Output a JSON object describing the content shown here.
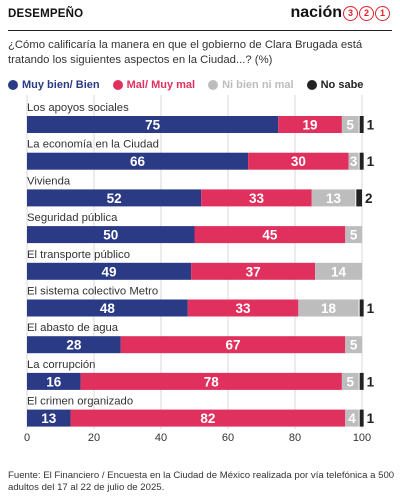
{
  "header": {
    "section": "DESEMPEÑO",
    "logo_word": "nación",
    "logo_digits": [
      "3",
      "2",
      "1"
    ]
  },
  "question": "¿Cómo calificaría la manera en que el gobierno de Clara Brugada está tratando los siguientes aspectos en la Ciudad...? (%)",
  "colors": {
    "Muy bien/ Bien": "#2b3a85",
    "Mal/ Muy mal": "#e0305e",
    "Ni bien ni mal": "#bdbdbd",
    "No sabe": "#222222"
  },
  "source": "Fuente: El Financiero / Encuesta en la Ciudad de México realizada por vía telefónica a 500 adultos del 17 al 22 de julio de 2025.",
  "chart_data": {
    "type": "bar",
    "orientation": "horizontal",
    "stacked": true,
    "categories": [
      "Los apoyos sociales",
      "La economía en la Ciudad",
      "Vivienda",
      "Seguridad pública",
      "El transporte público",
      "El sistema colectivo Metro",
      "El abasto de agua",
      "La corrupción",
      "El crimen organizado"
    ],
    "series": [
      {
        "name": "Muy bien/ Bien",
        "values": [
          75,
          66,
          52,
          50,
          49,
          48,
          28,
          16,
          13
        ]
      },
      {
        "name": "Mal/ Muy mal",
        "values": [
          19,
          30,
          33,
          45,
          37,
          33,
          67,
          78,
          82
        ]
      },
      {
        "name": "Ni bien ni mal",
        "values": [
          5,
          3,
          13,
          5,
          14,
          18,
          5,
          5,
          4
        ]
      },
      {
        "name": "No sabe",
        "values": [
          1,
          1,
          2,
          0,
          0,
          1,
          0,
          1,
          1
        ]
      }
    ],
    "xlim": [
      0,
      100
    ],
    "xticks": [
      0,
      20,
      40,
      60,
      80,
      100
    ],
    "legend": "top",
    "grid": true
  }
}
